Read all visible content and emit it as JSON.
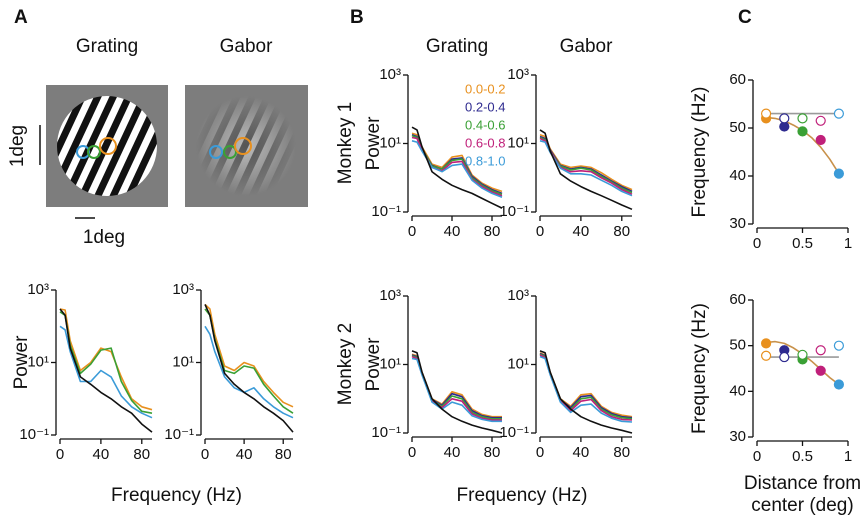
{
  "figure": {
    "panel_labels": [
      "A",
      "B",
      "C"
    ],
    "image_titles": [
      "Grating",
      "Gabor"
    ],
    "scale_bar_labels": [
      "1deg",
      "1deg"
    ],
    "row_labels": [
      "Monkey 1",
      "Monkey 2"
    ]
  },
  "chart_data": [
    {
      "type": "line",
      "log_scale": true,
      "ylabel": "Power",
      "xlabel": "Frequency (Hz)",
      "x": [
        0,
        5,
        10,
        20,
        30,
        40,
        50,
        60,
        70,
        80,
        90
      ],
      "xlim": [
        0,
        90
      ],
      "xticks": [
        0,
        40,
        80
      ],
      "ylim": [
        0.1,
        1000
      ],
      "yticks": [
        {
          "value": 0.1,
          "label": "10⁻¹"
        },
        {
          "value": 10,
          "label": "10¹"
        },
        {
          "value": 1000,
          "label": "10³"
        }
      ],
      "series": [
        {
          "color": "#e8901e",
          "values": [
            300,
            280,
            40,
            6,
            10,
            25,
            20,
            4,
            1,
            0.6,
            0.5
          ]
        },
        {
          "color": "#3aa035",
          "values": [
            250,
            200,
            30,
            5,
            9,
            22,
            25,
            3,
            0.9,
            0.45,
            0.4
          ]
        },
        {
          "color": "#3b9bd8",
          "values": [
            100,
            80,
            20,
            3,
            3,
            6,
            4,
            1.2,
            0.6,
            0.4,
            0.3
          ]
        },
        {
          "color": "#111111",
          "values": [
            300,
            200,
            25,
            4,
            2.5,
            1.5,
            1,
            0.6,
            0.4,
            0.2,
            0.12
          ]
        }
      ]
    },
    {
      "type": "line",
      "log_scale": true,
      "x": [
        0,
        5,
        10,
        20,
        30,
        40,
        50,
        60,
        70,
        80,
        90
      ],
      "xlim": [
        0,
        90
      ],
      "xticks": [
        0,
        40,
        80
      ],
      "ylim": [
        0.1,
        1000
      ],
      "yticks": [
        {
          "value": 0.1,
          "label": "10⁻¹"
        },
        {
          "value": 10,
          "label": "10¹"
        },
        {
          "value": 1000,
          "label": "10³"
        }
      ],
      "series": [
        {
          "color": "#e8901e",
          "values": [
            400,
            300,
            60,
            8,
            6,
            10,
            8,
            3,
            1.5,
            0.8,
            0.6
          ]
        },
        {
          "color": "#3aa035",
          "values": [
            300,
            200,
            45,
            6,
            5,
            8,
            7,
            2.5,
            1.2,
            0.6,
            0.4
          ]
        },
        {
          "color": "#3b9bd8",
          "values": [
            100,
            60,
            20,
            4,
            2,
            1.5,
            2,
            1,
            0.6,
            0.4,
            0.3
          ]
        },
        {
          "color": "#111111",
          "values": [
            400,
            200,
            40,
            5,
            2.5,
            1.5,
            1,
            0.6,
            0.4,
            0.25,
            0.12
          ]
        }
      ]
    },
    {
      "type": "line",
      "log_scale": true,
      "title": "Grating",
      "ylabel": "Power",
      "legend": "upper right",
      "x": [
        0,
        5,
        10,
        20,
        30,
        40,
        50,
        60,
        70,
        80,
        90
      ],
      "xlim": [
        0,
        90
      ],
      "xticks": [
        0,
        40,
        80
      ],
      "ylim": [
        0.1,
        1000
      ],
      "yticks": [
        {
          "value": 0.1,
          "label": "10⁻¹"
        },
        {
          "value": 10,
          "label": "10¹"
        },
        {
          "value": 1000,
          "label": "10³"
        }
      ],
      "series": [
        {
          "name": "0.0-0.2",
          "color": "#e8901e",
          "values": [
            20,
            18,
            8,
            2.5,
            2,
            4,
            4.5,
            1.2,
            0.7,
            0.5,
            0.4
          ]
        },
        {
          "name": "0.2-0.4",
          "color": "#2e2a8f",
          "values": [
            18,
            16,
            7,
            2.3,
            1.8,
            3.5,
            3.8,
            1.1,
            0.65,
            0.45,
            0.35
          ]
        },
        {
          "name": "0.4-0.6",
          "color": "#3aa035",
          "values": [
            17,
            15,
            7,
            2.2,
            1.8,
            3.2,
            3.5,
            1,
            0.6,
            0.42,
            0.33
          ]
        },
        {
          "name": "0.6-0.8",
          "color": "#c0207a",
          "values": [
            15,
            14,
            6.5,
            2,
            1.6,
            2.8,
            3,
            0.9,
            0.55,
            0.38,
            0.3
          ]
        },
        {
          "name": "0.8-1.0",
          "color": "#3b9bd8",
          "values": [
            12,
            11,
            6,
            2,
            1.5,
            2.3,
            2.5,
            0.85,
            0.5,
            0.35,
            0.27
          ]
        },
        {
          "color": "#111111",
          "values": [
            30,
            25,
            8,
            1.5,
            0.9,
            0.6,
            0.45,
            0.35,
            0.25,
            0.18,
            0.13
          ]
        }
      ]
    },
    {
      "type": "line",
      "log_scale": true,
      "title": "Gabor",
      "x": [
        0,
        5,
        10,
        20,
        30,
        40,
        50,
        60,
        70,
        80,
        90
      ],
      "xlim": [
        0,
        90
      ],
      "xticks": [
        0,
        40,
        80
      ],
      "ylim": [
        0.1,
        1000
      ],
      "yticks": [
        {
          "value": 0.1,
          "label": "10⁻¹"
        },
        {
          "value": 10,
          "label": "10¹"
        },
        {
          "value": 1000,
          "label": "10³"
        }
      ],
      "series": [
        {
          "color": "#e8901e",
          "values": [
            18,
            16,
            7,
            2.5,
            2,
            2.2,
            2,
            1.4,
            0.9,
            0.6,
            0.45
          ]
        },
        {
          "color": "#2e2a8f",
          "values": [
            16,
            14,
            6.5,
            2.3,
            1.8,
            2,
            1.8,
            1.2,
            0.8,
            0.55,
            0.4
          ]
        },
        {
          "color": "#3aa035",
          "values": [
            15,
            13,
            6,
            2.2,
            1.7,
            1.9,
            1.7,
            1.1,
            0.75,
            0.5,
            0.37
          ]
        },
        {
          "color": "#c0207a",
          "values": [
            14,
            12,
            6,
            2,
            1.5,
            1.6,
            1.5,
            1,
            0.7,
            0.45,
            0.33
          ]
        },
        {
          "color": "#3b9bd8",
          "values": [
            12,
            11,
            5.5,
            1.9,
            1.3,
            1.3,
            1.2,
            0.85,
            0.6,
            0.4,
            0.3
          ]
        },
        {
          "color": "#111111",
          "values": [
            25,
            20,
            6,
            1.3,
            0.8,
            0.55,
            0.4,
            0.3,
            0.22,
            0.16,
            0.12
          ]
        }
      ]
    },
    {
      "type": "line",
      "log_scale": true,
      "ylabel": "Power",
      "xlabel": "Frequency (Hz)",
      "x": [
        0,
        5,
        10,
        20,
        30,
        40,
        50,
        60,
        70,
        80,
        90
      ],
      "xlim": [
        0,
        90
      ],
      "xticks": [
        0,
        40,
        80
      ],
      "ylim": [
        0.1,
        1000
      ],
      "yticks": [
        {
          "value": 0.1,
          "label": "10⁻¹"
        },
        {
          "value": 10,
          "label": "10¹"
        },
        {
          "value": 1000,
          "label": "10³"
        }
      ],
      "series": [
        {
          "color": "#e8901e",
          "values": [
            20,
            18,
            6,
            1,
            0.7,
            1.6,
            1.3,
            0.5,
            0.35,
            0.3,
            0.3
          ]
        },
        {
          "color": "#2e2a8f",
          "values": [
            19,
            17,
            5.8,
            0.95,
            0.65,
            1.4,
            1.15,
            0.45,
            0.32,
            0.28,
            0.28
          ]
        },
        {
          "color": "#3aa035",
          "values": [
            18,
            16,
            5.5,
            0.9,
            0.6,
            1.2,
            1,
            0.4,
            0.3,
            0.26,
            0.26
          ]
        },
        {
          "color": "#c0207a",
          "values": [
            17,
            15,
            5.2,
            0.85,
            0.55,
            1,
            0.85,
            0.36,
            0.27,
            0.24,
            0.24
          ]
        },
        {
          "color": "#3b9bd8",
          "values": [
            15,
            14,
            5,
            0.8,
            0.5,
            0.8,
            0.65,
            0.32,
            0.25,
            0.22,
            0.22
          ]
        },
        {
          "color": "#111111",
          "values": [
            25,
            22,
            6,
            1,
            0.5,
            0.3,
            0.22,
            0.17,
            0.14,
            0.12,
            0.1
          ]
        }
      ]
    },
    {
      "type": "line",
      "log_scale": true,
      "x": [
        0,
        5,
        10,
        20,
        30,
        40,
        50,
        60,
        70,
        80,
        90
      ],
      "xlim": [
        0,
        90
      ],
      "xticks": [
        0,
        40,
        80
      ],
      "ylim": [
        0.1,
        1000
      ],
      "yticks": [
        {
          "value": 0.1,
          "label": "10⁻¹"
        },
        {
          "value": 10,
          "label": "10¹"
        },
        {
          "value": 1000,
          "label": "10³"
        }
      ],
      "series": [
        {
          "color": "#e8901e",
          "values": [
            22,
            19,
            6,
            1,
            0.6,
            1.3,
            1.4,
            0.6,
            0.4,
            0.33,
            0.3
          ]
        },
        {
          "color": "#2e2a8f",
          "values": [
            21,
            18,
            5.8,
            0.95,
            0.55,
            1.15,
            1.25,
            0.55,
            0.37,
            0.3,
            0.28
          ]
        },
        {
          "color": "#3aa035",
          "values": [
            20,
            17,
            5.5,
            0.9,
            0.5,
            1,
            1.1,
            0.5,
            0.34,
            0.28,
            0.26
          ]
        },
        {
          "color": "#c0207a",
          "values": [
            19,
            16,
            5.2,
            0.85,
            0.45,
            0.85,
            0.95,
            0.45,
            0.3,
            0.25,
            0.24
          ]
        },
        {
          "color": "#3b9bd8",
          "values": [
            17,
            15,
            5,
            0.8,
            0.4,
            0.65,
            0.7,
            0.38,
            0.27,
            0.22,
            0.21
          ]
        },
        {
          "color": "#111111",
          "values": [
            25,
            22,
            6,
            1,
            0.5,
            0.3,
            0.22,
            0.17,
            0.14,
            0.12,
            0.1
          ]
        }
      ]
    },
    {
      "type": "scatter",
      "ylabel": "Frequency (Hz)",
      "x": [
        0.1,
        0.3,
        0.5,
        0.7,
        0.9
      ],
      "xlim": [
        0,
        1
      ],
      "xticks": [
        0,
        0.5,
        1
      ],
      "ylim": [
        30,
        60
      ],
      "yticks": [
        30,
        40,
        50,
        60
      ],
      "series": [
        {
          "filled": true,
          "colors": [
            "#e8901e",
            "#2e2a8f",
            "#3aa035",
            "#c0207a",
            "#3b9bd8"
          ],
          "values": [
            52,
            50.3,
            49.3,
            47.5,
            40.5
          ]
        },
        {
          "filled": false,
          "colors": [
            "#e8901e",
            "#2e2a8f",
            "#3aa035",
            "#c0207a",
            "#3b9bd8"
          ],
          "values": [
            53,
            52,
            52,
            51.5,
            53
          ]
        }
      ],
      "fits": [
        {
          "color": "#c8914a",
          "x": [
            0.1,
            0.2,
            0.3,
            0.4,
            0.5,
            0.6,
            0.7,
            0.8,
            0.9
          ],
          "values": [
            52.2,
            52,
            51.5,
            50.6,
            49.5,
            48,
            46,
            43.5,
            40.5
          ]
        },
        {
          "color": "#9a9a9a",
          "x": [
            0.1,
            0.9
          ],
          "values": [
            53,
            53
          ]
        }
      ]
    },
    {
      "type": "scatter",
      "ylabel": "Frequency (Hz)",
      "xlabel": [
        "Distance from",
        "center (deg)"
      ],
      "x": [
        0.1,
        0.3,
        0.5,
        0.7,
        0.9
      ],
      "xlim": [
        0,
        1
      ],
      "xticks": [
        0,
        0.5,
        1
      ],
      "ylim": [
        30,
        60
      ],
      "yticks": [
        30,
        40,
        50,
        60
      ],
      "series": [
        {
          "filled": true,
          "colors": [
            "#e8901e",
            "#2e2a8f",
            "#3aa035",
            "#c0207a",
            "#3b9bd8"
          ],
          "values": [
            50.5,
            49,
            47,
            44.5,
            41.5
          ]
        },
        {
          "filled": false,
          "colors": [
            "#e8901e",
            "#2e2a8f",
            "#3aa035",
            "#c0207a",
            "#3b9bd8"
          ],
          "values": [
            47.8,
            47.5,
            48,
            49,
            50
          ]
        }
      ],
      "fits": [
        {
          "color": "#c8914a",
          "x": [
            0.1,
            0.2,
            0.3,
            0.4,
            0.5,
            0.6,
            0.7,
            0.8,
            0.9
          ],
          "values": [
            50.7,
            50.9,
            50.5,
            49.5,
            48.2,
            46.6,
            44.8,
            43,
            41.5
          ]
        },
        {
          "color": "#9a9a9a",
          "x": [
            0.1,
            0.9
          ],
          "values": [
            47.5,
            47.5
          ]
        }
      ]
    }
  ]
}
